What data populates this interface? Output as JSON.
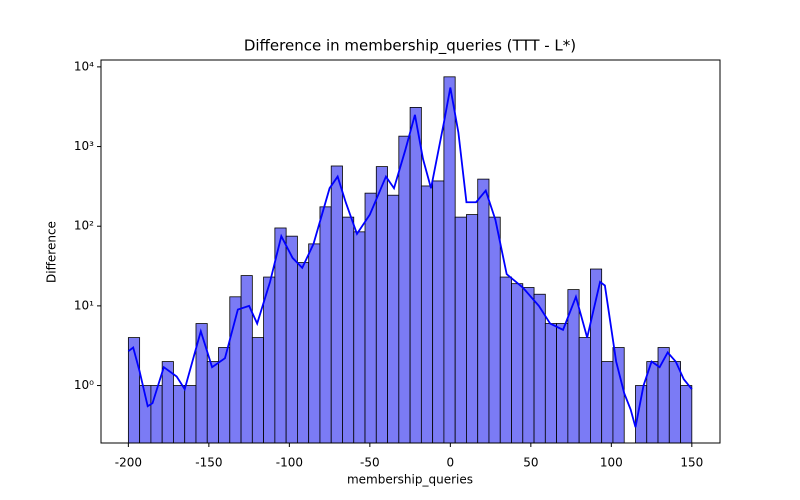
{
  "chart_data": {
    "type": "histogram",
    "title": "Difference in membership_queries (TTT - L*)",
    "x_label": "membership_queries",
    "y_label": "Difference",
    "bins": [
      -200,
      -193,
      -186,
      -179,
      -172,
      -165,
      -158,
      -151,
      -144,
      -137,
      -130,
      -123,
      -116,
      -109,
      -102,
      -95,
      -88,
      -81,
      -74,
      -67,
      -60,
      -53,
      -46,
      -39,
      -32,
      -25,
      -18,
      -11,
      -4,
      3,
      10,
      17,
      24,
      31,
      38,
      45,
      52,
      59,
      66,
      73,
      80,
      87,
      94,
      101,
      108,
      115,
      122,
      129,
      136,
      143,
      150
    ],
    "values": [
      4,
      1,
      1,
      2,
      1,
      1,
      6,
      2,
      3,
      13,
      24,
      4,
      23,
      95,
      75,
      35,
      60,
      175,
      570,
      130,
      85,
      260,
      560,
      245,
      1350,
      3100,
      320,
      370,
      7500,
      130,
      140,
      390,
      130,
      23,
      19,
      17,
      14,
      6,
      6,
      16,
      4,
      29,
      2,
      3,
      0,
      1,
      2,
      3,
      2,
      1
    ],
    "color": "#7b7bf5",
    "kde": {
      "color": "#0000ff",
      "x": [
        -200,
        -197,
        -193,
        -188,
        -185,
        -178,
        -170,
        -165,
        -155,
        -148,
        -140,
        -132,
        -125,
        -120,
        -112,
        -105,
        -98,
        -92,
        -85,
        -75,
        -70,
        -65,
        -58,
        -50,
        -40,
        -35,
        -28,
        -22,
        -17,
        -12,
        -4,
        0,
        5,
        10,
        16,
        22,
        28,
        35,
        45,
        55,
        62,
        70,
        78,
        85,
        93,
        96,
        103,
        108,
        112,
        115,
        120,
        125,
        130,
        135,
        140,
        145,
        150
      ],
      "values": [
        2.7,
        3,
        1.5,
        0.55,
        0.6,
        1.7,
        1.3,
        0.9,
        4.8,
        1.7,
        2.2,
        9,
        10,
        6,
        20,
        75,
        40,
        30,
        60,
        300,
        420,
        200,
        80,
        140,
        420,
        300,
        900,
        2500,
        700,
        300,
        2000,
        5500,
        1500,
        200,
        200,
        280,
        120,
        25,
        17,
        10,
        6,
        5,
        13,
        4,
        20,
        18,
        2,
        0.8,
        0.5,
        0.3,
        1,
        2,
        1.7,
        2.6,
        2,
        1.2,
        0.9
      ]
    },
    "xlim": [
      -217,
      167.5
    ],
    "ylim": [
      0.19,
      12200
    ],
    "log_y": true,
    "xticks": [
      -200,
      -150,
      -100,
      -50,
      0,
      50,
      100,
      150
    ],
    "yticks": [
      {
        "value": 1,
        "label": "10⁰"
      },
      {
        "value": 10,
        "label": "10¹"
      },
      {
        "value": 100,
        "label": "10²"
      },
      {
        "value": 1000,
        "label": "10³"
      },
      {
        "value": 10000,
        "label": "10⁴"
      }
    ]
  }
}
